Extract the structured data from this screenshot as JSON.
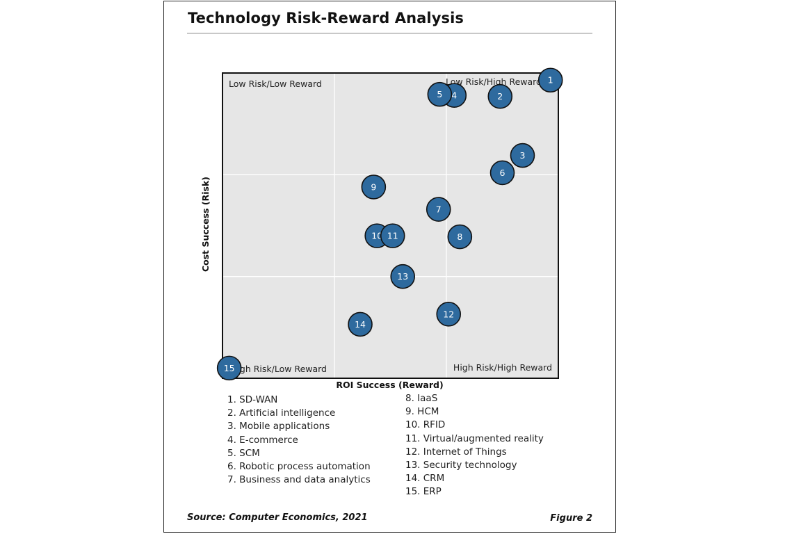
{
  "title": "Technology Risk-Reward Analysis",
  "source": "Source: Computer Economics, 2021",
  "figure": "Figure 2",
  "chart_data": {
    "type": "scatter",
    "xlabel": "ROI Success (Reward)",
    "ylabel": "Cost Success (Risk)",
    "xlim": [
      0,
      3
    ],
    "ylim": [
      0,
      3
    ],
    "grid": true,
    "quadrants": {
      "top_left": "Low Risk/Low Reward",
      "top_right": "Low Risk/High Reward",
      "bottom_left": "High Risk/Low Reward",
      "bottom_right": "High Risk/High Reward"
    },
    "marker_color": "#2e6a9e",
    "points": [
      {
        "label": "1",
        "x": 2.93,
        "y": 2.93
      },
      {
        "label": "2",
        "x": 2.48,
        "y": 2.77
      },
      {
        "label": "3",
        "x": 2.68,
        "y": 2.19
      },
      {
        "label": "4",
        "x": 2.07,
        "y": 2.78
      },
      {
        "label": "5",
        "x": 1.94,
        "y": 2.79
      },
      {
        "label": "6",
        "x": 2.5,
        "y": 2.02
      },
      {
        "label": "7",
        "x": 1.93,
        "y": 1.66
      },
      {
        "label": "8",
        "x": 2.12,
        "y": 1.39
      },
      {
        "label": "9",
        "x": 1.35,
        "y": 1.88
      },
      {
        "label": "10",
        "x": 1.38,
        "y": 1.4
      },
      {
        "label": "11",
        "x": 1.52,
        "y": 1.4
      },
      {
        "label": "12",
        "x": 2.02,
        "y": 0.63
      },
      {
        "label": "13",
        "x": 1.61,
        "y": 1.0
      },
      {
        "label": "14",
        "x": 1.23,
        "y": 0.53
      },
      {
        "label": "15",
        "x": 0.06,
        "y": 0.1
      }
    ]
  },
  "legend_left": [
    "1. SD-WAN",
    "2. Artificial intelligence",
    "3. Mobile applications",
    "4. E-commerce",
    "5. SCM",
    "6. Robotic process automation",
    "7. Business and data analytics"
  ],
  "legend_right": [
    "8. IaaS",
    "9. HCM",
    "10. RFID",
    "11. Virtual/augmented reality",
    "12. Internet of Things",
    "13. Security technology",
    "14. CRM",
    "15. ERP"
  ]
}
